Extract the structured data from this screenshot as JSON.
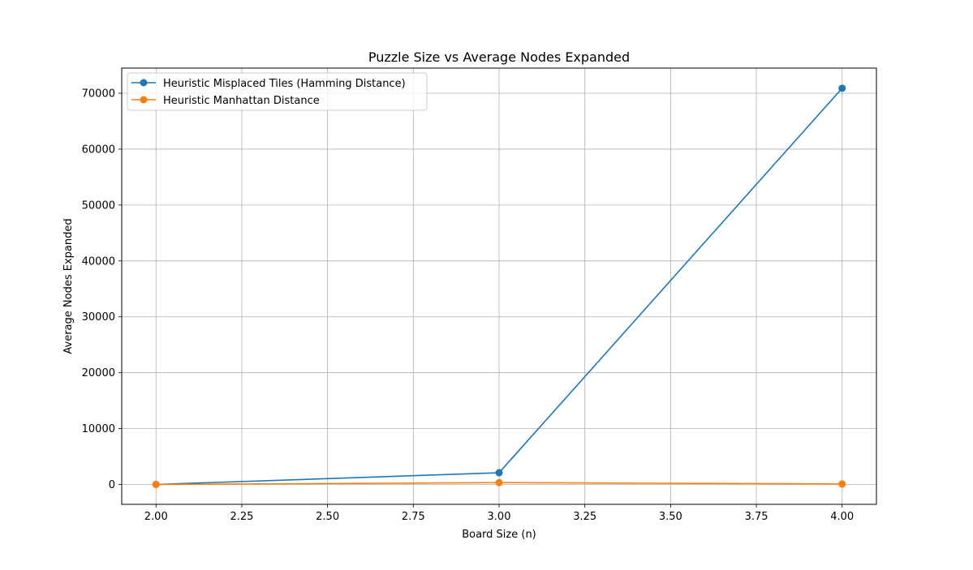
{
  "chart_data": {
    "type": "line",
    "title": "Puzzle Size vs Average Nodes Expanded",
    "xlabel": "Board Size (n)",
    "ylabel": "Average Nodes Expanded",
    "x": [
      2,
      3,
      4
    ],
    "xlim": [
      1.9,
      4.1
    ],
    "ylim": [
      -3550,
      74500
    ],
    "xticks": [
      2.0,
      2.25,
      2.5,
      2.75,
      3.0,
      3.25,
      3.5,
      3.75,
      4.0
    ],
    "xtick_labels": [
      "2.00",
      "2.25",
      "2.50",
      "2.75",
      "3.00",
      "3.25",
      "3.50",
      "3.75",
      "4.00"
    ],
    "yticks": [
      0,
      10000,
      20000,
      30000,
      40000,
      50000,
      60000,
      70000
    ],
    "ytick_labels": [
      "0",
      "10000",
      "20000",
      "30000",
      "40000",
      "50000",
      "60000",
      "70000"
    ],
    "grid": true,
    "legend_position": "top-left",
    "series": [
      {
        "name": "Heuristic Misplaced Tiles (Hamming Distance)",
        "color": "#1f77b4",
        "values": [
          5,
          2100,
          70900
        ]
      },
      {
        "name": "Heuristic Manhattan Distance",
        "color": "#ff7f0e",
        "values": [
          3,
          330,
          90
        ]
      }
    ]
  }
}
